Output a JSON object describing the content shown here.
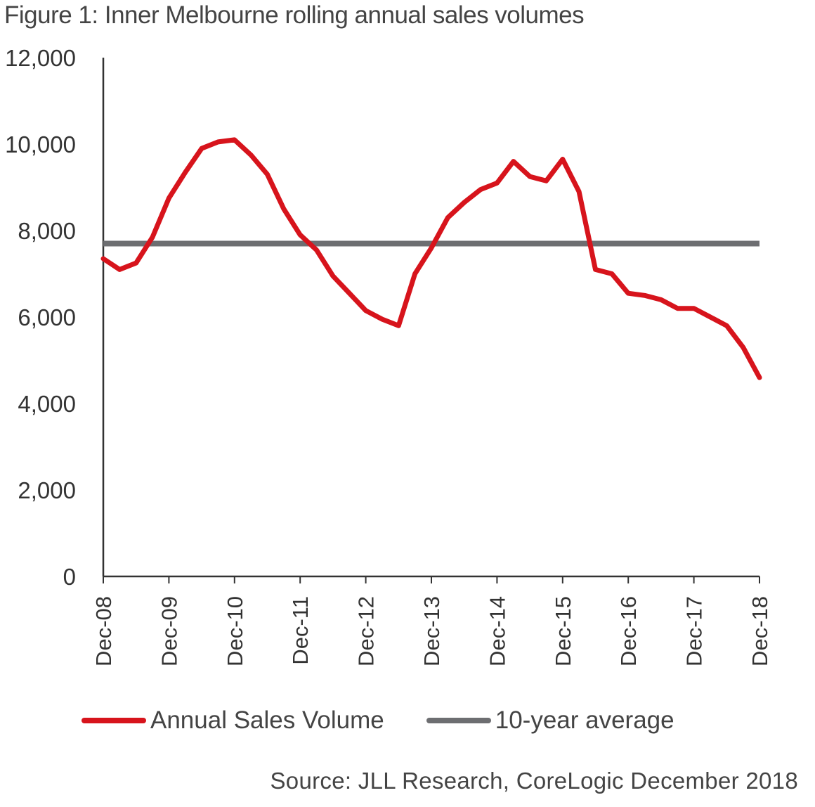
{
  "figure_title": "Figure 1: Inner Melbourne rolling annual sales volumes",
  "source": "Source: JLL Research, CoreLogic December 2018",
  "colors": {
    "series": "#d7141c",
    "average": "#6d6e71",
    "axis": "#333333"
  },
  "chart_data": {
    "type": "line",
    "title": "Figure 1: Inner Melbourne rolling annual sales volumes",
    "xlabel": "",
    "ylabel": "",
    "ylim": [
      0,
      12000
    ],
    "yticks": [
      0,
      2000,
      4000,
      6000,
      8000,
      10000,
      12000
    ],
    "ytick_labels": [
      "0",
      "2,000",
      "4,000",
      "6,000",
      "8,000",
      "10,000",
      "12,000"
    ],
    "x_tick_labels": [
      "Dec-08",
      "Dec-09",
      "Dec-10",
      "Dec-11",
      "Dec-12",
      "Dec-13",
      "Dec-14",
      "Dec-15",
      "Dec-16",
      "Dec-17",
      "Dec-18"
    ],
    "x_frequency": "quarterly",
    "legend_position": "bottom",
    "grid": false,
    "series": [
      {
        "name": "Annual Sales Volume",
        "color": "#d7141c",
        "values": [
          7350,
          7100,
          7250,
          7850,
          8750,
          9350,
          9900,
          10050,
          10100,
          9750,
          9300,
          8500,
          7900,
          7550,
          6950,
          6550,
          6150,
          5950,
          5800,
          7000,
          7600,
          8300,
          8650,
          8950,
          9100,
          9600,
          9250,
          9150,
          9650,
          8900,
          7100,
          7000,
          6550,
          6500,
          6400,
          6200,
          6200,
          6000,
          5800,
          5300,
          4600
        ]
      },
      {
        "name": "10-year average",
        "color": "#6d6e71",
        "values": [
          7700,
          7700
        ]
      }
    ]
  }
}
